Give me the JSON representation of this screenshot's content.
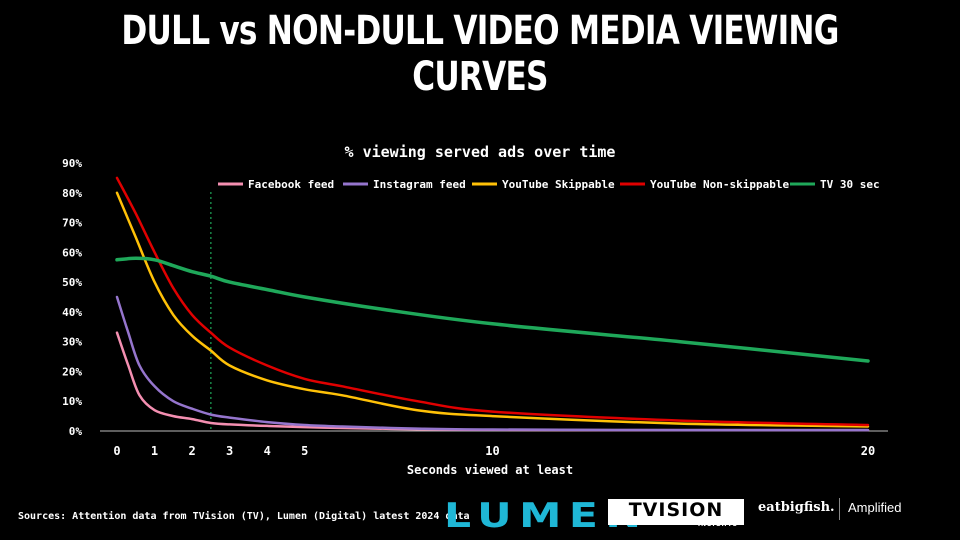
{
  "headline": "DULL vs NON-DULL VIDEO MEDIA VIEWING CURVES",
  "source_note": "Sources: Attention data from TVision (TV), Lumen (Digital) latest 2024 data",
  "logos": {
    "lumen": "LUMEN",
    "tvision": "TVISION",
    "tvision_sub": "INSIGHTS",
    "eatbigfish": "eatbigfish.",
    "amplified": "Amplified"
  },
  "chart_data": {
    "type": "line",
    "title": "% viewing served ads over time",
    "xlabel": "Seconds viewed at least",
    "ylabel": "",
    "x_ticks": [
      0,
      1,
      2,
      3,
      4,
      5,
      10,
      20
    ],
    "y_ticks": [
      "0%",
      "10%",
      "20%",
      "30%",
      "40%",
      "50%",
      "60%",
      "70%",
      "80%",
      "90%"
    ],
    "xlim": [
      0,
      20
    ],
    "ylim": [
      0,
      90
    ],
    "reference_line_x": 2.5,
    "legend_position": "top",
    "series": [
      {
        "name": "Facebook feed",
        "color": "#f48fb1",
        "points": [
          [
            0,
            33
          ],
          [
            0.3,
            22
          ],
          [
            0.6,
            12
          ],
          [
            1,
            7
          ],
          [
            1.5,
            5
          ],
          [
            2,
            4
          ],
          [
            2.5,
            2.7
          ],
          [
            3,
            2.2
          ],
          [
            4,
            1.7
          ],
          [
            5,
            1.3
          ],
          [
            6,
            1
          ],
          [
            8,
            0.6
          ],
          [
            10,
            0.4
          ],
          [
            15,
            0.3
          ],
          [
            20,
            0.3
          ]
        ]
      },
      {
        "name": "Instagram feed",
        "color": "#9575cd",
        "points": [
          [
            0,
            45
          ],
          [
            0.3,
            33
          ],
          [
            0.6,
            22
          ],
          [
            1,
            15
          ],
          [
            1.5,
            10
          ],
          [
            2,
            7.5
          ],
          [
            2.5,
            5.5
          ],
          [
            3,
            4.5
          ],
          [
            4,
            3
          ],
          [
            5,
            2
          ],
          [
            6,
            1.5
          ],
          [
            8,
            0.8
          ],
          [
            10,
            0.5
          ],
          [
            15,
            0.3
          ],
          [
            20,
            0.3
          ]
        ]
      },
      {
        "name": "YouTube Skippable",
        "color": "#ffc107",
        "points": [
          [
            0,
            80
          ],
          [
            0.5,
            65
          ],
          [
            1,
            50
          ],
          [
            1.5,
            39
          ],
          [
            2,
            32
          ],
          [
            2.5,
            27
          ],
          [
            3,
            22
          ],
          [
            4,
            17
          ],
          [
            5,
            14
          ],
          [
            6,
            12
          ],
          [
            8,
            7
          ],
          [
            10,
            5
          ],
          [
            15,
            2.5
          ],
          [
            20,
            1.5
          ]
        ]
      },
      {
        "name": "YouTube Non-skippable",
        "color": "#e00000",
        "points": [
          [
            0,
            85
          ],
          [
            0.5,
            73
          ],
          [
            1,
            60
          ],
          [
            1.5,
            48
          ],
          [
            2,
            39
          ],
          [
            2.5,
            33
          ],
          [
            3,
            28
          ],
          [
            4,
            22
          ],
          [
            5,
            17.5
          ],
          [
            6,
            15
          ],
          [
            8,
            10
          ],
          [
            10,
            6.5
          ],
          [
            15,
            3.5
          ],
          [
            20,
            2
          ]
        ]
      },
      {
        "name": "TV 30 sec",
        "color": "#1fa85a",
        "points": [
          [
            0,
            57.5
          ],
          [
            0.5,
            58
          ],
          [
            1,
            57.5
          ],
          [
            1.5,
            55.5
          ],
          [
            2,
            53.5
          ],
          [
            2.5,
            52
          ],
          [
            3,
            50
          ],
          [
            4,
            47.5
          ],
          [
            5,
            45
          ],
          [
            7,
            41
          ],
          [
            10,
            36
          ],
          [
            15,
            30
          ],
          [
            20,
            23.5
          ]
        ]
      }
    ]
  }
}
